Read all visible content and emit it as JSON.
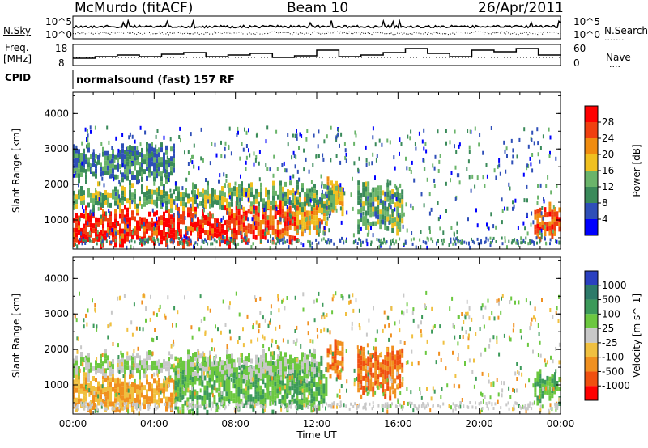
{
  "header": {
    "station": "McMurdo (fitACF)",
    "beam": "Beam 10",
    "date": "26/Apr/2011"
  },
  "noise_panel": {
    "left_label": "N.Sky",
    "right_label": "N.Search",
    "tick_top": "10^5",
    "tick_bottom": "10^0",
    "right_tick_top": "10^5",
    "right_tick_bottom": "10^0"
  },
  "freq_panel": {
    "left_label_1": "Freq.",
    "left_label_2": "[MHz]",
    "right_label": "Nave",
    "left_ticks": [
      "18",
      "8"
    ],
    "right_ticks": [
      "60",
      "0"
    ]
  },
  "cpid": {
    "label": "CPID",
    "value": "normalsound (fast) 157 RF"
  },
  "chart_data": [
    {
      "type": "heatmap",
      "name": "power",
      "xlabel": "",
      "ylabel": "Slant Range [km]",
      "x_range": [
        0,
        24
      ],
      "ylim": [
        180,
        4600
      ],
      "yticks": [
        "1000",
        "2000",
        "3000",
        "4000"
      ],
      "colorbar": {
        "label": "Power [dB]",
        "ticks": [
          "4",
          "8",
          "12",
          "16",
          "20",
          "24",
          "28"
        ],
        "colors": [
          "#0000ff",
          "#2f4fb8",
          "#3a8a5a",
          "#6ab46a",
          "#f0c020",
          "#f08c10",
          "#f04010",
          "#ff0000"
        ]
      },
      "regions": [
        {
          "t0": 0.0,
          "t1": 8.0,
          "r0": 500,
          "r1": 1300,
          "value": 28
        },
        {
          "t0": 8.0,
          "t1": 11.0,
          "r0": 600,
          "r1": 1500,
          "value": 26
        },
        {
          "t0": 11.0,
          "t1": 12.5,
          "r0": 800,
          "r1": 1700,
          "value": 20
        },
        {
          "t0": 12.5,
          "t1": 13.3,
          "r0": 1400,
          "r1": 2200,
          "value": 18
        },
        {
          "t0": 14.0,
          "t1": 16.2,
          "r0": 900,
          "r1": 2000,
          "value": 12
        },
        {
          "t0": 22.7,
          "t1": 24.0,
          "r0": 700,
          "r1": 1400,
          "value": 26
        },
        {
          "t0": 0.0,
          "t1": 5.0,
          "r0": 2300,
          "r1": 3100,
          "value": 10
        },
        {
          "t0": 0.0,
          "t1": 13.0,
          "r0": 1500,
          "r1": 2000,
          "value": 14
        }
      ]
    },
    {
      "type": "heatmap",
      "name": "velocity",
      "xlabel": "Time UT",
      "ylabel": "Slant Range [km]",
      "x_range": [
        0,
        24
      ],
      "xticks": [
        "00:00",
        "04:00",
        "08:00",
        "12:00",
        "16:00",
        "20:00",
        "00:00"
      ],
      "ylim": [
        180,
        4600
      ],
      "yticks": [
        "1000",
        "2000",
        "3000",
        "4000"
      ],
      "colorbar": {
        "label": "Velocity [m s^-1]",
        "ticks": [
          "1000",
          "500",
          "100",
          "25",
          "-25",
          "-100",
          "-500",
          "-1000"
        ],
        "colors": [
          "#2a40c0",
          "#2d7a6a",
          "#3c9a5a",
          "#6cc840",
          "#c8c8c8",
          "#f0c040",
          "#f09020",
          "#f05010",
          "#ff0000"
        ]
      },
      "regions": [
        {
          "t0": 0.0,
          "t1": 5.0,
          "r0": 500,
          "r1": 1300,
          "value": -100
        },
        {
          "t0": 5.0,
          "t1": 12.5,
          "r0": 500,
          "r1": 1700,
          "value": 100
        },
        {
          "t0": 12.5,
          "t1": 13.3,
          "r0": 1400,
          "r1": 2200,
          "value": -500
        },
        {
          "t0": 14.0,
          "t1": 16.2,
          "r0": 900,
          "r1": 2000,
          "value": -500
        },
        {
          "t0": 22.7,
          "t1": 24.0,
          "r0": 700,
          "r1": 1400,
          "value": 100
        },
        {
          "t0": 0.0,
          "t1": 12.0,
          "r0": 1400,
          "r1": 1900,
          "value": 25
        }
      ]
    }
  ]
}
